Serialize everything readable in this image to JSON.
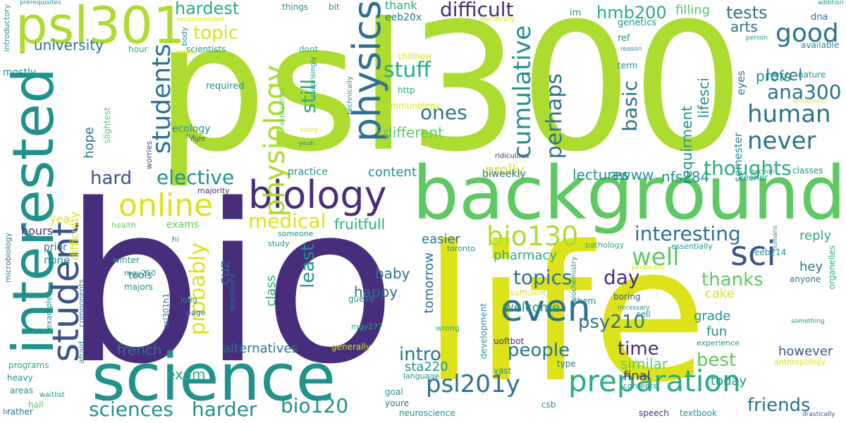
{
  "palette": {
    "dark_purple": "#472d7b",
    "purple": "#3b528b",
    "blue": "#2c728e",
    "teal": "#21918c",
    "green_teal": "#28ae80",
    "green": "#5ec962",
    "lime": "#addc30",
    "yellow": "#dde318",
    "background": "#ffffff"
  },
  "words": [
    {
      "text": "psl300",
      "weight": 1.0,
      "color": "lime"
    },
    {
      "text": "bio",
      "weight": 0.95,
      "color": "dark_purple"
    },
    {
      "text": "life",
      "weight": 0.92,
      "color": "yellow"
    },
    {
      "text": "background",
      "weight": 0.55,
      "color": "green"
    },
    {
      "text": "science",
      "weight": 0.5,
      "color": "teal"
    },
    {
      "text": "interested",
      "weight": 0.45,
      "color": "teal"
    },
    {
      "text": "psl301",
      "weight": 0.4,
      "color": "lime"
    },
    {
      "text": "biology",
      "weight": 0.32,
      "color": "dark_purple"
    },
    {
      "text": "physics",
      "weight": 0.3,
      "color": "blue"
    },
    {
      "text": "student",
      "weight": 0.3,
      "color": "purple"
    },
    {
      "text": "physiology",
      "weight": 0.25,
      "color": "lime"
    },
    {
      "text": "even",
      "weight": 0.26,
      "color": "blue"
    },
    {
      "text": "online",
      "weight": 0.24,
      "color": "yellow"
    },
    {
      "text": "preparation",
      "weight": 0.24,
      "color": "green_teal"
    },
    {
      "text": "sci",
      "weight": 0.24,
      "color": "purple"
    },
    {
      "text": "bio130",
      "weight": 0.2,
      "color": "lime"
    },
    {
      "text": "students",
      "weight": 0.2,
      "color": "blue"
    },
    {
      "text": "cumulative",
      "weight": 0.18,
      "color": "teal"
    },
    {
      "text": "good",
      "weight": 0.18,
      "color": "blue"
    },
    {
      "text": "human",
      "weight": 0.18,
      "color": "blue"
    },
    {
      "text": "never",
      "weight": 0.18,
      "color": "blue"
    },
    {
      "text": "psl201y",
      "weight": 0.18,
      "color": "blue"
    },
    {
      "text": "well",
      "weight": 0.17,
      "color": "green"
    },
    {
      "text": "stuff",
      "weight": 0.16,
      "color": "green_teal"
    },
    {
      "text": "probably",
      "weight": 0.16,
      "color": "yellow"
    },
    {
      "text": "perhaps",
      "weight": 0.15,
      "color": "blue"
    },
    {
      "text": "difficult",
      "weight": 0.14,
      "color": "dark_purple"
    },
    {
      "text": "medical",
      "weight": 0.14,
      "color": "yellow"
    },
    {
      "text": "elective",
      "weight": 0.14,
      "color": "teal"
    },
    {
      "text": "harder",
      "weight": 0.14,
      "color": "teal"
    },
    {
      "text": "still",
      "weight": 0.14,
      "color": "green_teal"
    },
    {
      "text": "basic",
      "weight": 0.14,
      "color": "blue"
    },
    {
      "text": "bio120",
      "weight": 0.14,
      "color": "teal"
    },
    {
      "text": "sciences",
      "weight": 0.14,
      "color": "teal"
    },
    {
      "text": "topics",
      "weight": 0.14,
      "color": "blue"
    },
    {
      "text": "ana300",
      "weight": 0.14,
      "color": "blue"
    },
    {
      "text": "interesting",
      "weight": 0.14,
      "color": "blue"
    },
    {
      "text": "thoughts",
      "weight": 0.14,
      "color": "green_teal"
    },
    {
      "text": "day",
      "weight": 0.14,
      "color": "dark_purple"
    },
    {
      "text": "hardest",
      "weight": 0.12,
      "color": "green_teal"
    },
    {
      "text": "hmb200",
      "weight": 0.12,
      "color": "green_teal"
    },
    {
      "text": "tests",
      "weight": 0.12,
      "color": "blue"
    },
    {
      "text": "topic",
      "weight": 0.12,
      "color": "yellow"
    },
    {
      "text": "ones",
      "weight": 0.12,
      "color": "blue"
    },
    {
      "text": "level",
      "weight": 0.12,
      "color": "blue"
    },
    {
      "text": "hard",
      "weight": 0.12,
      "color": "purple"
    },
    {
      "text": "least",
      "weight": 0.12,
      "color": "teal"
    },
    {
      "text": "intro",
      "weight": 0.12,
      "color": "blue"
    },
    {
      "text": "people",
      "weight": 0.12,
      "color": "blue"
    },
    {
      "text": "time",
      "weight": 0.12,
      "color": "dark_purple"
    },
    {
      "text": "psy210",
      "weight": 0.12,
      "color": "blue"
    },
    {
      "text": "best",
      "weight": 0.12,
      "color": "green"
    },
    {
      "text": "thanks",
      "weight": 0.12,
      "color": "green"
    },
    {
      "text": "friends",
      "weight": 0.12,
      "color": "blue"
    },
    {
      "text": "fruitfull",
      "weight": 0.11,
      "color": "green_teal"
    },
    {
      "text": "cuz",
      "weight": 0.11,
      "color": "blue"
    },
    {
      "text": "different",
      "weight": 0.1,
      "color": "green"
    },
    {
      "text": "content",
      "weight": 0.1,
      "color": "teal"
    },
    {
      "text": "prolly",
      "weight": 0.1,
      "color": "yellow"
    },
    {
      "text": "awww",
      "weight": 0.1,
      "color": "teal"
    },
    {
      "text": "profs",
      "weight": 0.1,
      "color": "teal"
    },
    {
      "text": "lectures",
      "weight": 0.1,
      "color": "teal"
    },
    {
      "text": "nfs284",
      "weight": 0.1,
      "color": "teal"
    },
    {
      "text": "requirment",
      "weight": 0.1,
      "color": "teal"
    },
    {
      "text": "lifesci",
      "weight": 0.1,
      "color": "teal"
    },
    {
      "text": "university",
      "weight": 0.1,
      "color": "blue"
    },
    {
      "text": "arts",
      "weight": 0.1,
      "color": "blue"
    },
    {
      "text": "filling",
      "weight": 0.1,
      "color": "green"
    },
    {
      "text": "hope",
      "weight": 0.1,
      "color": "blue"
    },
    {
      "text": "alternatives",
      "weight": 0.1,
      "color": "blue"
    },
    {
      "text": "french",
      "weight": 0.1,
      "color": "blue"
    },
    {
      "text": "exam",
      "weight": 0.1,
      "color": "green_teal"
    },
    {
      "text": "baby",
      "weight": 0.1,
      "color": "blue"
    },
    {
      "text": "happy",
      "weight": 0.1,
      "color": "blue"
    },
    {
      "text": "class",
      "weight": 0.1,
      "color": "green_teal"
    },
    {
      "text": "welcome",
      "weight": 0.1,
      "color": "teal"
    },
    {
      "text": "similar",
      "weight": 0.1,
      "color": "green"
    },
    {
      "text": "grade",
      "weight": 0.1,
      "color": "teal"
    },
    {
      "text": "fun",
      "weight": 0.1,
      "color": "teal"
    },
    {
      "text": "however",
      "weight": 0.1,
      "color": "purple"
    },
    {
      "text": "final",
      "weight": 0.1,
      "color": "dark_purple"
    },
    {
      "text": "today",
      "weight": 0.1,
      "color": "teal"
    },
    {
      "text": "reply",
      "weight": 0.1,
      "color": "green_teal"
    },
    {
      "text": "hey",
      "weight": 0.1,
      "color": "blue"
    },
    {
      "text": "cake",
      "weight": 0.1,
      "color": "yellow"
    },
    {
      "text": "tomorrow",
      "weight": 0.1,
      "color": "blue"
    },
    {
      "text": "easier",
      "weight": 0.1,
      "color": "blue"
    },
    {
      "text": "pharmacy",
      "weight": 0.1,
      "color": "green_teal"
    },
    {
      "text": "sta220",
      "weight": 0.1,
      "color": "teal"
    },
    {
      "text": "yea",
      "weight": 0.1,
      "color": "yellow"
    },
    {
      "text": "hours",
      "weight": 0.09,
      "color": "dark_purple"
    },
    {
      "text": "thank",
      "weight": 0.09,
      "color": "green_teal"
    },
    {
      "text": "eeb20x",
      "weight": 0.09,
      "color": "blue"
    },
    {
      "text": "dna",
      "weight": 0.08,
      "color": "blue"
    },
    {
      "text": "semester",
      "weight": 0.08,
      "color": "teal"
    },
    {
      "text": "eyes",
      "weight": 0.08,
      "color": "blue"
    },
    {
      "text": "biweekly",
      "weight": 0.08,
      "color": "blue"
    },
    {
      "text": "practice",
      "weight": 0.08,
      "color": "teal"
    },
    {
      "text": "difficulty",
      "weight": 0.08,
      "color": "yellow"
    },
    {
      "text": "exams",
      "weight": 0.08,
      "color": "green"
    },
    {
      "text": "tools",
      "weight": 0.08,
      "color": "blue"
    },
    {
      "text": "none",
      "weight": 0.08,
      "color": "teal"
    },
    {
      "text": "prior",
      "weight": 0.08,
      "color": "blue"
    },
    {
      "text": "ecology",
      "weight": 0.08,
      "color": "teal"
    },
    {
      "text": "mostly",
      "weight": 0.08,
      "color": "teal"
    },
    {
      "text": "scientists",
      "weight": 0.08,
      "color": "teal"
    },
    {
      "text": "im",
      "weight": 0.08,
      "color": "teal"
    },
    {
      "text": "genetics",
      "weight": 0.08,
      "color": "teal"
    },
    {
      "text": "ref",
      "weight": 0.08,
      "color": "teal"
    },
    {
      "text": "things",
      "weight": 0.08,
      "color": "teal"
    },
    {
      "text": "chillhow",
      "weight": 0.08,
      "color": "yellow"
    },
    {
      "text": "dont",
      "weight": 0.08,
      "color": "green_teal"
    },
    {
      "text": "required",
      "weight": 0.08,
      "color": "teal"
    },
    {
      "text": "introductory",
      "weight": 0.07,
      "color": "teal"
    },
    {
      "text": "classes",
      "weight": 0.07,
      "color": "teal"
    },
    {
      "text": "available",
      "weight": 0.07,
      "color": "teal"
    },
    {
      "text": "nature",
      "weight": 0.07,
      "color": "teal"
    },
    {
      "text": "keener",
      "weight": 0.07,
      "color": "teal"
    },
    {
      "text": "eeb214",
      "weight": 0.07,
      "color": "teal"
    },
    {
      "text": "organelles",
      "weight": 0.07,
      "color": "green_teal"
    },
    {
      "text": "anyone",
      "weight": 0.07,
      "color": "blue"
    },
    {
      "text": "essentially",
      "weight": 0.07,
      "color": "teal"
    },
    {
      "text": "boring",
      "weight": 0.07,
      "color": "purple"
    },
    {
      "text": "chem",
      "weight": 0.07,
      "color": "teal"
    },
    {
      "text": "cell",
      "weight": 0.07,
      "color": "teal"
    },
    {
      "text": "experience",
      "weight": 0.07,
      "color": "teal"
    },
    {
      "text": "uoftbot",
      "weight": 0.07,
      "color": "dark_purple"
    },
    {
      "text": "development",
      "weight": 0.07,
      "color": "teal"
    },
    {
      "text": "vast",
      "weight": 0.07,
      "color": "teal"
    },
    {
      "text": "csb",
      "weight": 0.07,
      "color": "teal"
    },
    {
      "text": "type",
      "weight": 0.07,
      "color": "blue"
    },
    {
      "text": "guess",
      "weight": 0.07,
      "color": "teal"
    },
    {
      "text": "someone",
      "weight": 0.07,
      "color": "teal"
    },
    {
      "text": "study",
      "weight": 0.07,
      "color": "teal"
    },
    {
      "text": "questions",
      "weight": 0.07,
      "color": "blue"
    },
    {
      "text": "health",
      "weight": 0.07,
      "color": "green"
    },
    {
      "text": "winter",
      "weight": 0.07,
      "color": "teal"
    },
    {
      "text": "majors",
      "weight": 0.07,
      "color": "teal"
    },
    {
      "text": "mgy250",
      "weight": 0.07,
      "color": "teal"
    },
    {
      "text": "majority",
      "weight": 0.07,
      "color": "dark_purple"
    },
    {
      "text": "worries",
      "weight": 0.07,
      "color": "purple"
    },
    {
      "text": "hi",
      "weight": 0.07,
      "color": "teal"
    },
    {
      "text": "microbiology",
      "weight": 0.07,
      "color": "blue"
    },
    {
      "text": "example",
      "weight": 0.07,
      "color": "teal"
    },
    {
      "text": "components",
      "weight": 0.07,
      "color": "blue"
    },
    {
      "text": "long",
      "weight": 0.07,
      "color": "teal"
    },
    {
      "text": "page",
      "weight": 0.07,
      "color": "blue"
    },
    {
      "text": "afraid",
      "weight": 0.07,
      "color": "teal"
    },
    {
      "text": "psl301h1",
      "weight": 0.07,
      "color": "blue"
    },
    {
      "text": "programs",
      "weight": 0.07,
      "color": "green_teal"
    },
    {
      "text": "heavy",
      "weight": 0.07,
      "color": "teal"
    },
    {
      "text": "areas",
      "weight": 0.07,
      "color": "teal"
    },
    {
      "text": "hall",
      "weight": 0.07,
      "color": "green"
    },
    {
      "text": "rather",
      "weight": 0.07,
      "color": "blue"
    },
    {
      "text": "waitlist",
      "weight": 0.06,
      "color": "teal"
    },
    {
      "text": "language",
      "weight": 0.07,
      "color": "teal"
    },
    {
      "text": "goal",
      "weight": 0.07,
      "color": "teal"
    },
    {
      "text": "youre",
      "weight": 0.07,
      "color": "blue"
    },
    {
      "text": "neuroscience",
      "weight": 0.07,
      "color": "teal"
    },
    {
      "text": "generally",
      "weight": 0.07,
      "color": "yellow"
    },
    {
      "text": "wrong",
      "weight": 0.06,
      "color": "green_teal"
    },
    {
      "text": "mgy277",
      "weight": 0.06,
      "color": "green_teal"
    },
    {
      "text": "toronto",
      "weight": 0.06,
      "color": "teal"
    },
    {
      "text": "pathology",
      "weight": 0.06,
      "color": "green_teal"
    },
    {
      "text": "sufficient",
      "weight": 0.06,
      "color": "yellow"
    },
    {
      "text": "speech",
      "weight": 0.06,
      "color": "dark_purple"
    },
    {
      "text": "textbook",
      "weight": 0.06,
      "color": "teal"
    },
    {
      "text": "contents",
      "weight": 0.06,
      "color": "teal"
    },
    {
      "text": "anthropology",
      "weight": 0.06,
      "color": "yellow"
    },
    {
      "text": "necessary",
      "weight": 0.05,
      "color": "teal"
    },
    {
      "text": "something",
      "weight": 0.05,
      "color": "teal"
    },
    {
      "text": "personally",
      "weight": 0.05,
      "color": "yellow"
    },
    {
      "text": "humans",
      "weight": 0.05,
      "color": "teal"
    },
    {
      "text": "drastically",
      "weight": 0.05,
      "color": "purple"
    },
    {
      "text": "section",
      "weight": 0.05,
      "color": "teal"
    },
    {
      "text": "ridiculous",
      "weight": 0.05,
      "color": "dark_purple"
    },
    {
      "text": "biochemistry",
      "weight": 0.05,
      "color": "teal"
    },
    {
      "text": "term",
      "weight": 0.06,
      "color": "teal"
    },
    {
      "text": "reason",
      "weight": 0.05,
      "color": "teal"
    },
    {
      "text": "person",
      "weight": 0.05,
      "color": "teal"
    },
    {
      "text": "enrollment",
      "weight": 0.05,
      "color": "yellow"
    },
    {
      "text": "addition",
      "weight": 0.05,
      "color": "teal"
    },
    {
      "text": "prerequisites",
      "weight": 0.05,
      "color": "teal"
    },
    {
      "text": "recommended",
      "weight": 0.05,
      "color": "yellow"
    },
    {
      "text": "body",
      "weight": 0.05,
      "color": "teal"
    },
    {
      "text": "week",
      "weight": 0.05,
      "color": "yellow"
    },
    {
      "text": "hour",
      "weight": 0.06,
      "color": "green_teal"
    },
    {
      "text": "bit",
      "weight": 0.06,
      "color": "teal"
    },
    {
      "text": "specifically",
      "weight": 0.05,
      "color": "yellow"
    },
    {
      "text": "http",
      "weight": 0.06,
      "color": "green_teal"
    },
    {
      "text": "immunology",
      "weight": 0.06,
      "color": "yellow"
    },
    {
      "text": "technically",
      "weight": 0.05,
      "color": "teal"
    },
    {
      "text": "surprisingly",
      "weight": 0.05,
      "color": "teal"
    },
    {
      "text": "application",
      "weight": 0.05,
      "color": "green"
    },
    {
      "text": "fce",
      "weight": 0.05,
      "color": "blue"
    },
    {
      "text": "right",
      "weight": 0.05,
      "color": "purple"
    },
    {
      "text": "yeah",
      "weight": 0.05,
      "color": "teal"
    },
    {
      "text": "sorry",
      "weight": 0.05,
      "color": "yellow"
    },
    {
      "text": "slightest",
      "weight": 0.06,
      "color": "green"
    },
    {
      "text": "br",
      "weight": 0.05,
      "color": "teal"
    }
  ]
}
